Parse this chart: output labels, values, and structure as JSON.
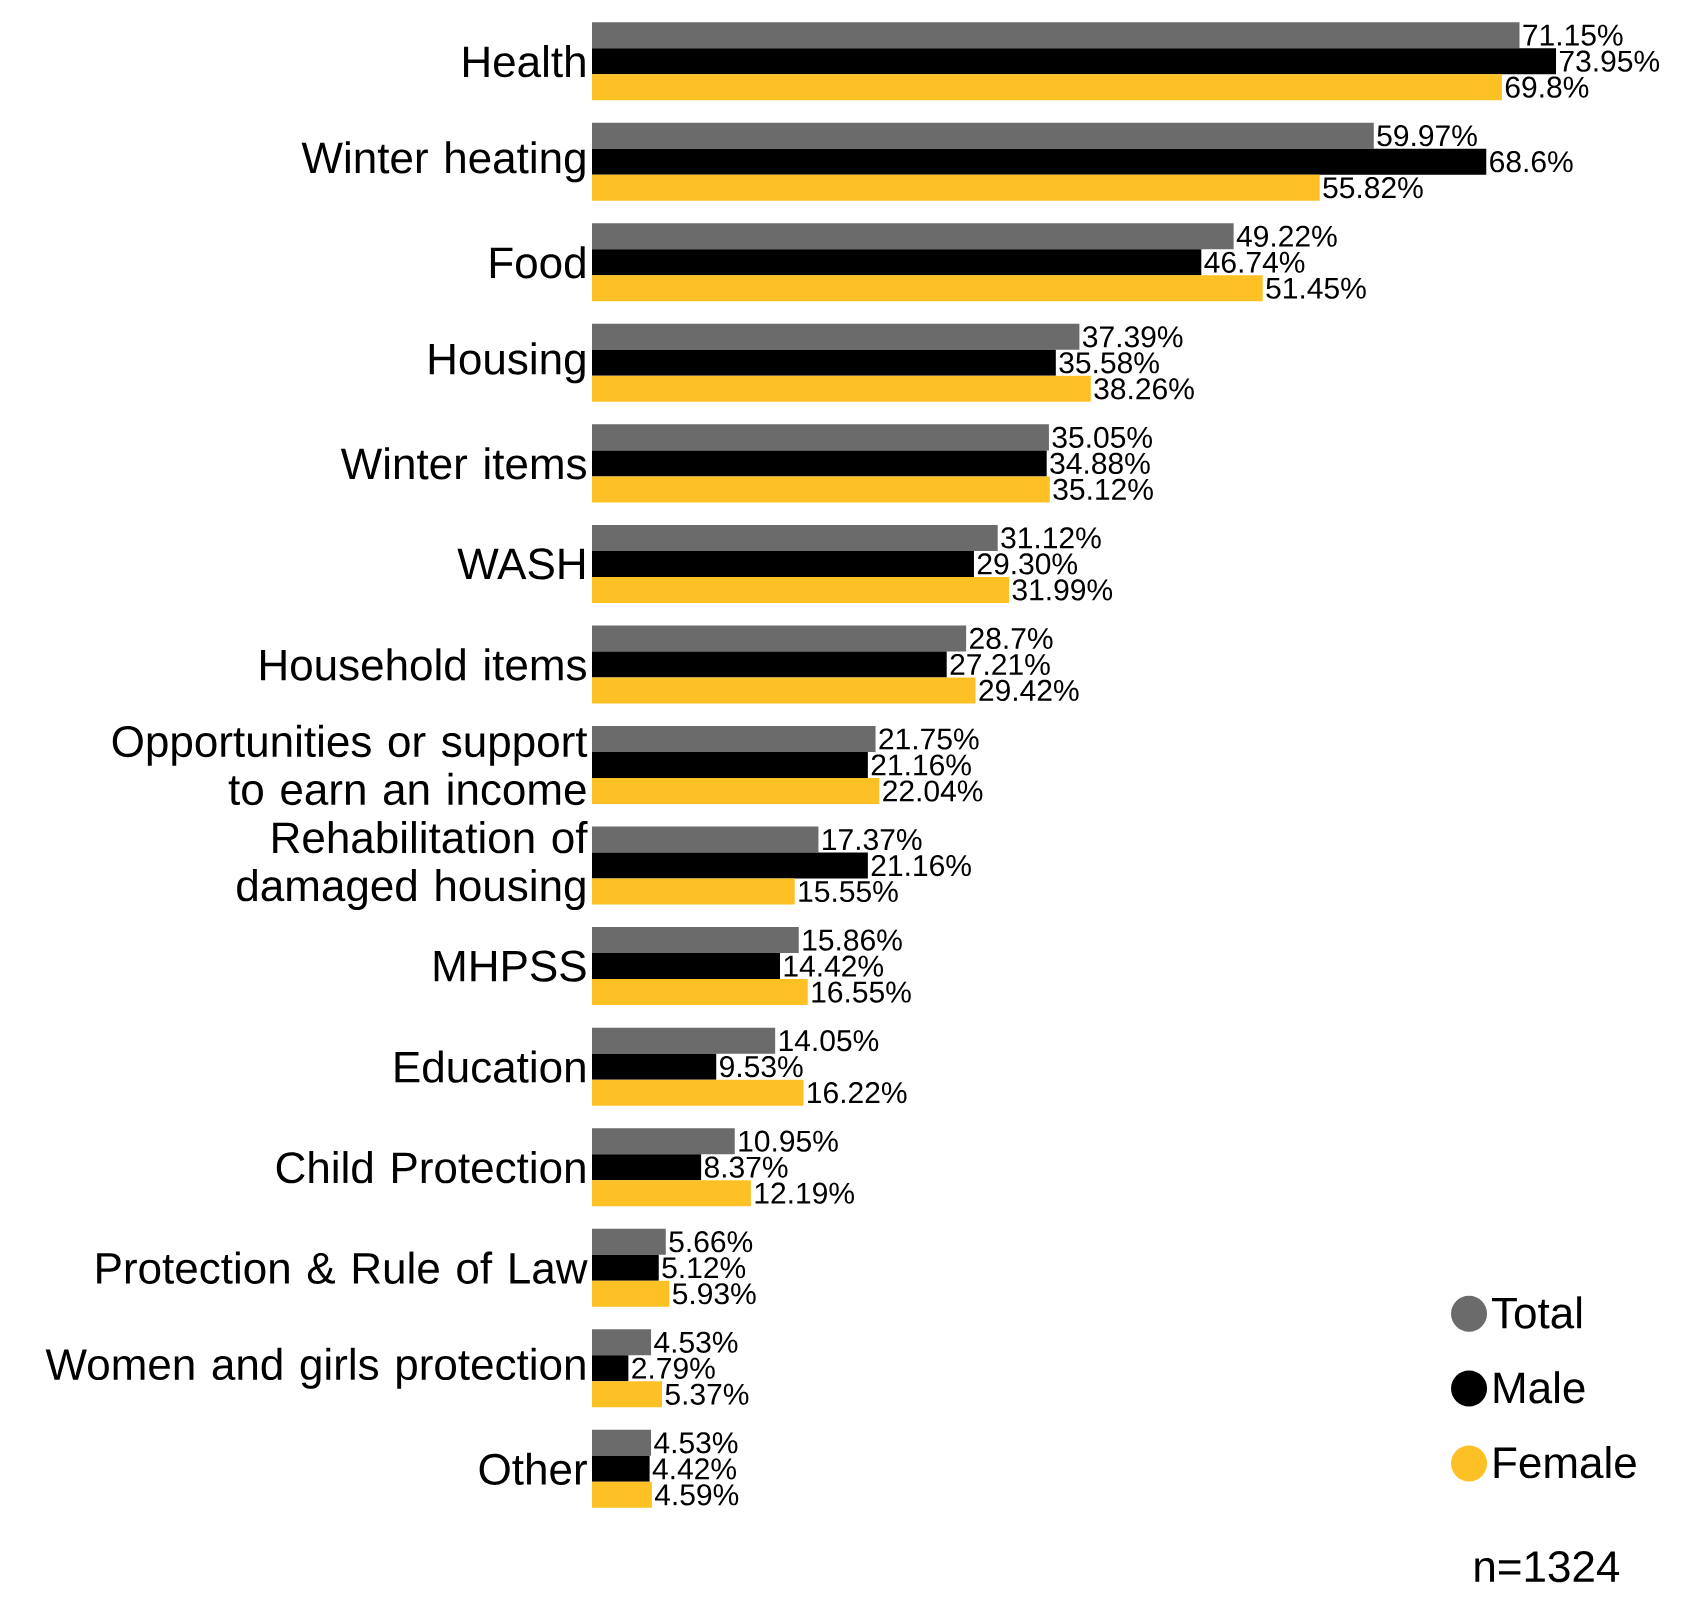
{
  "chart_data": {
    "type": "bar",
    "orientation": "horizontal",
    "categories": [
      "Health",
      "Winter heating",
      "Food",
      "Housing",
      "Winter items",
      "WASH",
      "Household items",
      "Opportunities or support to earn an income",
      "Rehabilitation of damaged housing",
      "MHPSS",
      "Education",
      "Child Protection",
      "Protection & Rule of Law",
      "Women and girls protection",
      "Other"
    ],
    "series": [
      {
        "name": "Total",
        "color": "#6b6b6b",
        "values": [
          71.15,
          59.97,
          49.22,
          37.39,
          35.05,
          31.12,
          28.7,
          21.75,
          17.37,
          15.86,
          14.05,
          10.95,
          5.66,
          4.53,
          4.53
        ],
        "value_labels": [
          "71.15%",
          "59.97%",
          "49.22%",
          "37.39%",
          "35.05%",
          "31.12%",
          "28.7%",
          "21.75%",
          "17.37%",
          "15.86%",
          "14.05%",
          "10.95%",
          "5.66%",
          "4.53%",
          "4.53%"
        ]
      },
      {
        "name": "Male",
        "color": "#000000",
        "values": [
          73.95,
          68.6,
          46.74,
          35.58,
          34.88,
          29.3,
          27.21,
          21.16,
          21.16,
          14.42,
          9.53,
          8.37,
          5.12,
          2.79,
          4.42
        ],
        "value_labels": [
          "73.95%",
          "68.6%",
          "46.74%",
          "35.58%",
          "34.88%",
          "29.30%",
          "27.21%",
          "21.16%",
          "21.16%",
          "14.42%",
          "9.53%",
          "8.37%",
          "5.12%",
          "2.79%",
          "4.42%"
        ]
      },
      {
        "name": "Female",
        "color": "#fdc125",
        "values": [
          69.8,
          55.82,
          51.45,
          38.26,
          35.12,
          31.99,
          29.42,
          22.04,
          15.55,
          16.55,
          16.22,
          12.19,
          5.93,
          5.37,
          4.59
        ],
        "value_labels": [
          "69.8%",
          "55.82%",
          "51.45%",
          "38.26%",
          "35.12%",
          "31.99%",
          "29.42%",
          "22.04%",
          "15.55%",
          "16.55%",
          "16.22%",
          "12.19%",
          "5.93%",
          "5.37%",
          "4.59%"
        ]
      }
    ],
    "legend": "bottom right",
    "annotations": [
      "n=1324"
    ]
  }
}
